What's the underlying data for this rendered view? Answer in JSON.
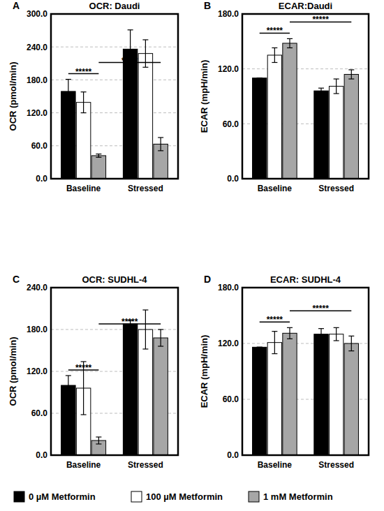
{
  "chart_data": [
    {
      "type": "bar",
      "label": "A",
      "title": "OCR: Daudi",
      "y_label": "OCR (pmol/min)",
      "categories": [
        "Baseline",
        "Stressed"
      ],
      "series": [
        {
          "name": "0 µM Metformin",
          "color": "#000000",
          "values": [
            159,
            236
          ],
          "errors": [
            22,
            35
          ]
        },
        {
          "name": "100 µM Metformin",
          "color": "#ffffff",
          "values": [
            139,
            228
          ],
          "errors": [
            19,
            25
          ]
        },
        {
          "name": "1 mM Metformin",
          "color": "#a6a6a6",
          "values": [
            42,
            63
          ],
          "errors": [
            3,
            12
          ]
        }
      ],
      "ylim": [
        0,
        300
      ],
      "yticks": [
        {
          "value": 0,
          "label": "0.0"
        },
        {
          "value": 60,
          "label": "60.0"
        },
        {
          "value": 120,
          "label": "120.0"
        },
        {
          "value": 180,
          "label": "180.0"
        },
        {
          "value": 240,
          "label": "240.0"
        },
        {
          "value": 300,
          "label": "300.0"
        }
      ],
      "grid": true,
      "legend": "bottom",
      "annotations": [
        {
          "text": "*****",
          "from": {
            "category": 0,
            "series": 0
          },
          "to": {
            "category": 0,
            "series": 2
          }
        },
        {
          "text": "*****",
          "from": {
            "category": 0,
            "series": 2
          },
          "to": {
            "category": 1,
            "series": 2
          }
        }
      ]
    },
    {
      "type": "bar",
      "label": "B",
      "title": "ECAR:Daudi",
      "y_label": "ECAR (mpH/min)",
      "categories": [
        "Baseline",
        "Stressed"
      ],
      "series": [
        {
          "color": "#000000",
          "values": [
            110,
            96
          ],
          "errors": [
            0,
            3
          ]
        },
        {
          "color": "#ffffff",
          "values": [
            135,
            101
          ],
          "errors": [
            8,
            8
          ]
        },
        {
          "color": "#a6a6a6",
          "values": [
            148,
            114
          ],
          "errors": [
            5,
            5
          ]
        }
      ],
      "ylim": [
        0,
        180
      ],
      "yticks": [
        {
          "value": 0,
          "label": "0.0"
        },
        {
          "value": 60,
          "label": "60.0"
        },
        {
          "value": 120,
          "label": "120.0"
        },
        {
          "value": 180,
          "label": "180.0"
        }
      ],
      "grid": true,
      "annotations": [
        {
          "text": "*****",
          "from": {
            "category": 0,
            "series": 0
          },
          "to": {
            "category": 0,
            "series": 2
          }
        },
        {
          "text": "*****",
          "from": {
            "category": 0,
            "series": 2
          },
          "to": {
            "category": 1,
            "series": 2
          }
        }
      ]
    },
    {
      "type": "bar",
      "label": "C",
      "title": "OCR: SUDHL-4",
      "y_label": "OCR (pmol/min)",
      "categories": [
        "Baseline",
        "Stressed"
      ],
      "series": [
        {
          "color": "#000000",
          "values": [
            100,
            188
          ],
          "errors": [
            14,
            5
          ]
        },
        {
          "color": "#ffffff",
          "values": [
            96,
            180
          ],
          "errors": [
            38,
            28
          ]
        },
        {
          "color": "#a6a6a6",
          "values": [
            21,
            168
          ],
          "errors": [
            5,
            12
          ]
        }
      ],
      "ylim": [
        0,
        240
      ],
      "yticks": [
        {
          "value": 0,
          "label": "0.0"
        },
        {
          "value": 60,
          "label": "60.0"
        },
        {
          "value": 120,
          "label": "120.0"
        },
        {
          "value": 180,
          "label": "180.0"
        },
        {
          "value": 240,
          "label": "240.0"
        }
      ],
      "grid": true,
      "annotations": [
        {
          "text": "*****",
          "from": {
            "category": 0,
            "series": 0
          },
          "to": {
            "category": 0,
            "series": 2
          }
        },
        {
          "text": "*****",
          "from": {
            "category": 0,
            "series": 2
          },
          "to": {
            "category": 1,
            "series": 2
          }
        }
      ]
    },
    {
      "type": "bar",
      "label": "D",
      "title": "ECAR: SUDHL-4",
      "y_label": "ECAR (mpH/min)",
      "categories": [
        "Baseline",
        "Stressed"
      ],
      "series": [
        {
          "color": "#000000",
          "values": [
            116,
            130
          ],
          "errors": [
            0,
            6
          ]
        },
        {
          "color": "#ffffff",
          "values": [
            121,
            130
          ],
          "errors": [
            12,
            7
          ]
        },
        {
          "color": "#a6a6a6",
          "values": [
            131,
            120
          ],
          "errors": [
            6,
            8
          ]
        }
      ],
      "ylim": [
        0,
        180
      ],
      "yticks": [
        {
          "value": 0,
          "label": "0.0"
        },
        {
          "value": 60,
          "label": "60.0"
        },
        {
          "value": 120,
          "label": "120.0"
        },
        {
          "value": 180,
          "label": "180.0"
        }
      ],
      "grid": true,
      "annotations": [
        {
          "text": "*****",
          "from": {
            "category": 0,
            "series": 0
          },
          "to": {
            "category": 0,
            "series": 2
          }
        },
        {
          "text": "*****",
          "from": {
            "category": 0,
            "series": 2
          },
          "to": {
            "category": 1,
            "series": 2
          }
        }
      ]
    }
  ]
}
